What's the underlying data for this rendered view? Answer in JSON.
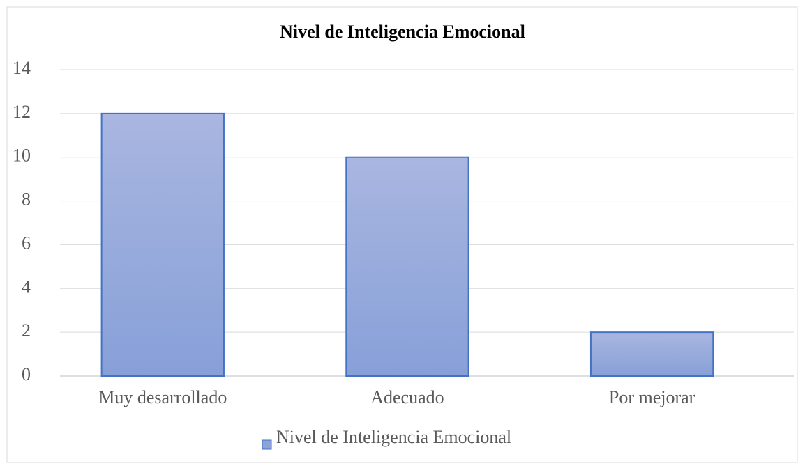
{
  "chart_data": {
    "type": "bar",
    "title": "Nivel de Inteligencia  Emocional",
    "categories": [
      "Muy desarrollado",
      "Adecuado",
      "Por mejorar"
    ],
    "series": [
      {
        "name": "Nivel de Inteligencia Emocional",
        "color": "#8da3d8",
        "values": [
          12,
          10,
          2
        ]
      }
    ],
    "ylim": [
      0,
      14
    ],
    "yticks": [
      0,
      2,
      4,
      6,
      8,
      10,
      12,
      14
    ],
    "grid": true,
    "legend": "bottom"
  }
}
